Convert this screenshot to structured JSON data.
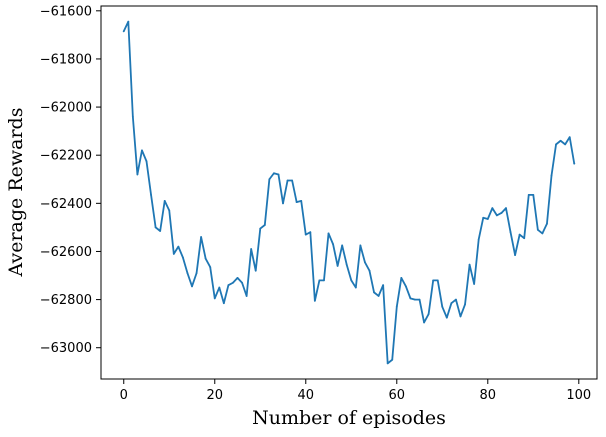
{
  "chart_data": {
    "type": "line",
    "title": "",
    "xlabel": "Number of episodes",
    "ylabel": "Average Rewards",
    "xlim": [
      -5,
      104
    ],
    "ylim": [
      -63130,
      -61580
    ],
    "xticks": [
      0,
      20,
      40,
      60,
      80,
      100
    ],
    "xtick_labels": [
      "0",
      "20",
      "40",
      "60",
      "80",
      "100"
    ],
    "yticks": [
      -63000,
      -62800,
      -62600,
      -62400,
      -62200,
      -62000,
      -61800,
      -61600
    ],
    "ytick_labels": [
      "−63000",
      "−62800",
      "−62600",
      "−62400",
      "−62200",
      "−62000",
      "−61800",
      "−61600"
    ],
    "grid": false,
    "legend": "none",
    "color": "#1f77b4",
    "series": [
      {
        "x": [
          0,
          1,
          2,
          3,
          4,
          5,
          6,
          7,
          8,
          9,
          10,
          11,
          12,
          13,
          14,
          15,
          16,
          17,
          18,
          19,
          20,
          21,
          22,
          23,
          24,
          25,
          26,
          27,
          28,
          29,
          30,
          31,
          32,
          33,
          34,
          35,
          36,
          37,
          38,
          39,
          40,
          41,
          42,
          43,
          44,
          45,
          46,
          47,
          48,
          49,
          50,
          51,
          52,
          53,
          54,
          55,
          56,
          57,
          58,
          59,
          60,
          61,
          62,
          63,
          64,
          65,
          66,
          67,
          68,
          69,
          70,
          71,
          72,
          73,
          74,
          75,
          76,
          77,
          78,
          79,
          80,
          81,
          82,
          83,
          84,
          85,
          86,
          87,
          88,
          89,
          90,
          91,
          92,
          93,
          94,
          95,
          96,
          97,
          98,
          99
        ],
        "values": [
          -61685,
          -61645,
          -62040,
          -62280,
          -62180,
          -62225,
          -62365,
          -62500,
          -62515,
          -62390,
          -62430,
          -62610,
          -62580,
          -62625,
          -62690,
          -62745,
          -62690,
          -62540,
          -62630,
          -62665,
          -62795,
          -62750,
          -62815,
          -62740,
          -62730,
          -62710,
          -62730,
          -62785,
          -62590,
          -62680,
          -62505,
          -62490,
          -62300,
          -62275,
          -62280,
          -62400,
          -62305,
          -62305,
          -62395,
          -62390,
          -62530,
          -62520,
          -62805,
          -62720,
          -62720,
          -62525,
          -62570,
          -62660,
          -62575,
          -62655,
          -62720,
          -62750,
          -62575,
          -62645,
          -62680,
          -62770,
          -62785,
          -62740,
          -63065,
          -63050,
          -62830,
          -62710,
          -62745,
          -62795,
          -62800,
          -62800,
          -62895,
          -62860,
          -62720,
          -62720,
          -62830,
          -62875,
          -62815,
          -62800,
          -62870,
          -62820,
          -62655,
          -62735,
          -62550,
          -62460,
          -62465,
          -62420,
          -62450,
          -62440,
          -62420,
          -62520,
          -62615,
          -62530,
          -62545,
          -62365,
          -62365,
          -62510,
          -62525,
          -62485,
          -62285,
          -62155,
          -62140,
          -62155,
          -62125,
          -62235
        ]
      }
    ]
  }
}
